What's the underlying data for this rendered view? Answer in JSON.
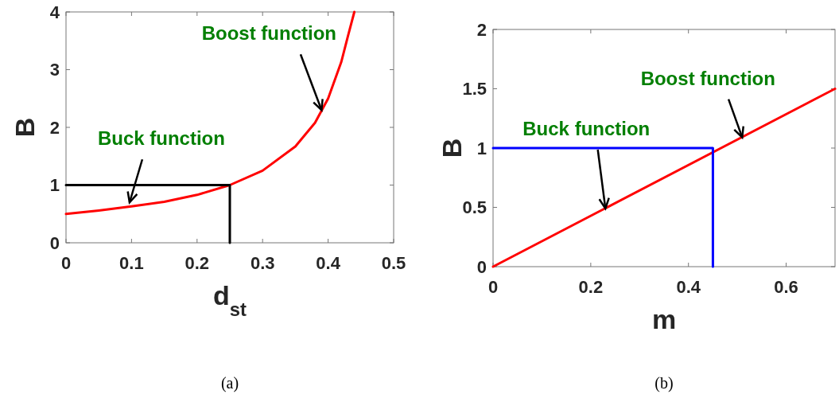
{
  "chart_data": [
    {
      "type": "line",
      "xlabel": "d$_{st}$",
      "ylabel": "B",
      "xlim": [
        0,
        0.5
      ],
      "ylim": [
        0,
        4
      ],
      "xticks": [
        0,
        0.1,
        0.2,
        0.3,
        0.4,
        0.5
      ],
      "yticks": [
        0,
        1,
        2,
        3,
        4
      ],
      "grid": false,
      "line_style": "solid",
      "series": [
        {
          "color": "#ff0000",
          "x": [
            0,
            0.05,
            0.1,
            0.15,
            0.2,
            0.25,
            0.3,
            0.35,
            0.38,
            0.4,
            0.42,
            0.43,
            0.44
          ],
          "values": [
            0.5,
            0.56,
            0.63,
            0.71,
            0.83,
            1.0,
            1.25,
            1.67,
            2.08,
            2.5,
            3.13,
            3.57,
            4.0
          ]
        },
        {
          "color": "#000000",
          "x": [
            0,
            0.25,
            0.25
          ],
          "values": [
            1,
            1,
            0
          ]
        }
      ],
      "annotations": [
        {
          "text": "Buck function",
          "x": 0.097,
          "y": 0.7
        },
        {
          "text": "Boost function",
          "x": 0.39,
          "y": 2.3
        },
        "(a)"
      ]
    },
    {
      "type": "line",
      "xlabel": "m",
      "ylabel": "B",
      "xlim": [
        0,
        0.7
      ],
      "ylim": [
        0,
        2
      ],
      "xticks": [
        0,
        0.2,
        0.4,
        0.6
      ],
      "yticks": [
        0,
        0.5,
        1,
        1.5,
        2
      ],
      "grid": false,
      "line_style": "solid",
      "series": [
        {
          "color": "#ff0000",
          "x": [
            0,
            0.7
          ],
          "values": [
            0,
            1.5
          ]
        },
        {
          "color": "#0000ff",
          "x": [
            0,
            0.45,
            0.45
          ],
          "values": [
            1,
            1,
            0
          ]
        }
      ],
      "annotations": [
        {
          "text": "Buck function",
          "x": 0.23,
          "y": 0.49
        },
        {
          "text": "Boost function",
          "x": 0.51,
          "y": 1.09
        },
        "(b)"
      ]
    }
  ]
}
